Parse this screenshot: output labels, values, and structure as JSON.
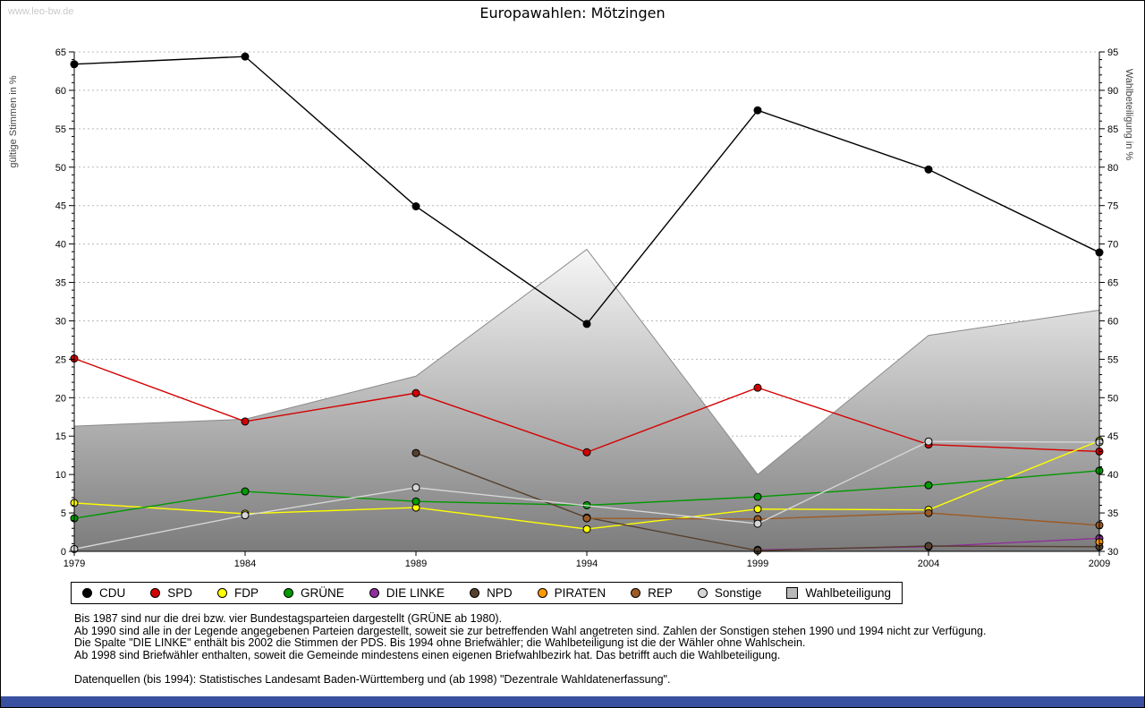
{
  "window": {
    "watermark": "www.leo-bw.de"
  },
  "title": "Europawahlen: Mötzingen",
  "chart_data": {
    "type": "line",
    "title": "Europawahlen: Mötzingen",
    "x": [
      "1979",
      "1984",
      "1989",
      "1994",
      "1999",
      "2004",
      "2009"
    ],
    "left_axis": {
      "label": "gültige Stimmen in %",
      "min": 0,
      "max": 65,
      "step": 5
    },
    "right_axis": {
      "label": "Wahlbeteiligung in %",
      "min": 30,
      "max": 95,
      "step": 5
    },
    "grid": true,
    "legend_position": "bottom",
    "series": [
      {
        "name": "CDU",
        "color": "#000000",
        "values": [
          63.4,
          64.4,
          44.9,
          29.6,
          57.4,
          49.7,
          38.9
        ]
      },
      {
        "name": "SPD",
        "color": "#d40000",
        "values": [
          25.1,
          16.9,
          20.6,
          12.9,
          21.3,
          13.9,
          13.0
        ]
      },
      {
        "name": "FDP",
        "color": "#ffff00",
        "values": [
          6.3,
          4.9,
          5.7,
          2.9,
          5.5,
          5.4,
          14.4
        ]
      },
      {
        "name": "GRÜNE",
        "color": "#009900",
        "values": [
          4.3,
          7.8,
          6.5,
          6.0,
          7.1,
          8.6,
          10.5
        ]
      },
      {
        "name": "DIE LINKE",
        "color": "#8f2f9b",
        "values": [
          null,
          null,
          null,
          null,
          0.2,
          0.6,
          1.7
        ]
      },
      {
        "name": "NPD",
        "color": "#55402e",
        "values": [
          null,
          null,
          12.8,
          4.4,
          0.1,
          0.7,
          0.6
        ]
      },
      {
        "name": "PIRATEN",
        "color": "#ff9900",
        "values": [
          null,
          null,
          null,
          null,
          null,
          null,
          1.2
        ]
      },
      {
        "name": "REP",
        "color": "#9c5a24",
        "values": [
          null,
          null,
          null,
          4.3,
          4.2,
          5.0,
          3.4
        ]
      },
      {
        "name": "Sonstige",
        "color": "#d6d6d6",
        "values": [
          0.3,
          4.7,
          8.3,
          null,
          3.6,
          14.3,
          14.2
        ]
      }
    ],
    "area_series": {
      "name": "Wahlbeteiligung",
      "axis": "right",
      "values": [
        46.3,
        47.2,
        52.8,
        69.3,
        40.0,
        58.1,
        61.4
      ],
      "color_top": "#f7f7f7",
      "color_bottom": "#7c7c7c",
      "legend_color": "#b8b8b8"
    }
  },
  "footnotes": {
    "lines": [
      "Bis 1987 sind nur die drei bzw. vier Bundestagsparteien dargestellt (GRÜNE ab 1980).",
      "Ab 1990 sind alle in der Legende angegebenen Parteien dargestellt, soweit sie zur betreffenden Wahl angetreten sind. Zahlen der Sonstigen stehen 1990 und 1994 nicht zur Verfügung.",
      "Die Spalte \"DIE LINKE\" enthält bis 2002 die Stimmen der PDS. Bis 1994 ohne Briefwähler; die Wahlbeteiligung ist die der Wähler ohne Wahlschein.",
      "Ab 1998 sind Briefwähler enthalten, soweit die Gemeinde mindestens einen eigenen Briefwahlbezirk hat. Das betrifft auch die Wahlbeteiligung."
    ],
    "source": "Datenquellen (bis 1994): Statistisches Landesamt Baden-Württemberg und (ab 1998) \"Dezentrale Wahldatenerfassung\"."
  },
  "footer": {
    "color": "#3a50a0"
  }
}
